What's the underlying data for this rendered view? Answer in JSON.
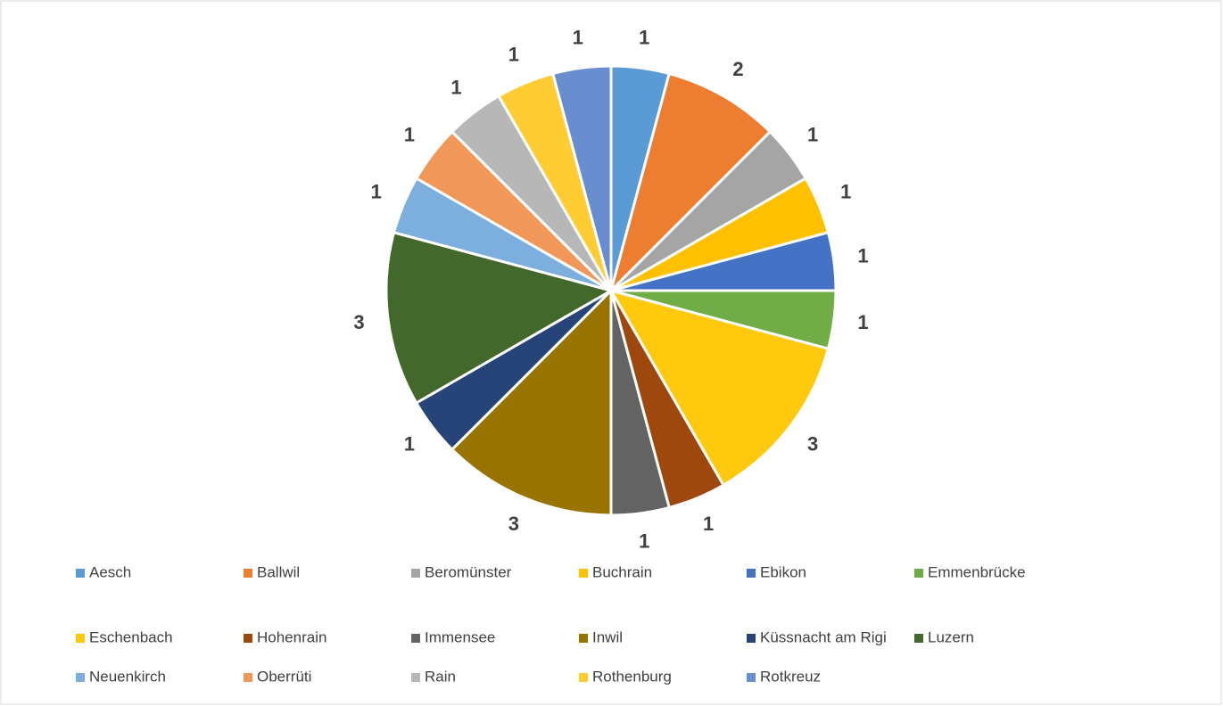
{
  "chart_data": {
    "type": "pie",
    "categories": [
      "Aesch",
      "Ballwil",
      "Beromünster",
      "Buchrain",
      "Ebikon",
      "Emmenbrücke",
      "Eschenbach",
      "Hohenrain",
      "Immensee",
      "Inwil",
      "Küssnacht am Rigi",
      "Luzern",
      "Neuenkirch",
      "Oberrüti",
      "Rain",
      "Rothenburg",
      "Rotkreuz"
    ],
    "values": [
      1,
      2,
      1,
      1,
      1,
      1,
      3,
      1,
      1,
      3,
      1,
      3,
      1,
      1,
      1,
      1,
      1
    ],
    "colors": [
      "#5b9bd5",
      "#ed7d31",
      "#a5a5a5",
      "#ffc000",
      "#4472c4",
      "#70ad47",
      "#ffc90e",
      "#9e480e",
      "#636363",
      "#997300",
      "#264478",
      "#43682b",
      "#7cafdd",
      "#f1975a",
      "#b7b7b7",
      "#ffcd33",
      "#698ed0"
    ],
    "legend": "bottom"
  }
}
